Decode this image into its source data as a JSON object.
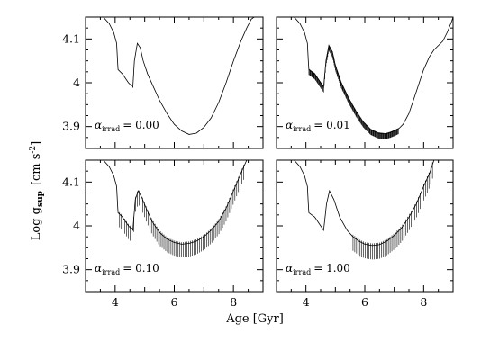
{
  "chart_data": {
    "type": "line",
    "xlabel": "Age [Gyr]",
    "ylabel": "Log g",
    "ylabel_sub": "sup",
    "ylabel_unit_prefix": "[cm s",
    "ylabel_unit_exp": "-2",
    "ylabel_unit_suffix": "]",
    "xlim": [
      3,
      9
    ],
    "ylim": [
      3.85,
      4.15
    ],
    "xticks": [
      4,
      6,
      8
    ],
    "xtick_labels": [
      "4",
      "6",
      "8"
    ],
    "yticks": [
      3.9,
      4.0,
      4.1
    ],
    "ytick_labels": [
      "3.9",
      "4",
      "4.1"
    ],
    "panels": [
      {
        "alpha_symbol": "α",
        "alpha_sub": "irrad",
        "alpha_text": "= 0.00",
        "curve": [
          [
            3.6,
            4.15
          ],
          [
            3.8,
            4.135
          ],
          [
            3.95,
            4.115
          ],
          [
            4.05,
            4.09
          ],
          [
            4.08,
            4.05
          ],
          [
            4.1,
            4.03
          ],
          [
            4.25,
            4.02
          ],
          [
            4.45,
            4.0
          ],
          [
            4.6,
            3.99
          ],
          [
            4.65,
            4.05
          ],
          [
            4.75,
            4.09
          ],
          [
            4.85,
            4.08
          ],
          [
            4.95,
            4.05
          ],
          [
            5.1,
            4.02
          ],
          [
            5.3,
            3.99
          ],
          [
            5.5,
            3.96
          ],
          [
            5.75,
            3.93
          ],
          [
            6.0,
            3.905
          ],
          [
            6.25,
            3.89
          ],
          [
            6.5,
            3.882
          ],
          [
            6.75,
            3.885
          ],
          [
            7.0,
            3.898
          ],
          [
            7.25,
            3.92
          ],
          [
            7.5,
            3.955
          ],
          [
            7.75,
            4.0
          ],
          [
            8.0,
            4.05
          ],
          [
            8.25,
            4.095
          ],
          [
            8.45,
            4.125
          ],
          [
            8.6,
            4.145
          ],
          [
            8.7,
            4.15
          ]
        ],
        "oscillation": null
      },
      {
        "alpha_symbol": "α",
        "alpha_sub": "irrad",
        "alpha_text": "= 0.01",
        "curve": [
          [
            3.6,
            4.15
          ],
          [
            3.8,
            4.135
          ],
          [
            3.95,
            4.115
          ],
          [
            4.05,
            4.09
          ],
          [
            4.08,
            4.05
          ],
          [
            4.1,
            4.03
          ],
          [
            4.3,
            4.02
          ],
          [
            4.5,
            4.0
          ],
          [
            4.6,
            3.99
          ],
          [
            4.68,
            4.05
          ],
          [
            4.78,
            4.085
          ],
          [
            4.9,
            4.07
          ],
          [
            5.0,
            4.04
          ],
          [
            5.2,
            4.0
          ],
          [
            5.45,
            3.965
          ],
          [
            5.7,
            3.935
          ],
          [
            5.95,
            3.91
          ],
          [
            6.2,
            3.893
          ],
          [
            6.45,
            3.885
          ],
          [
            6.7,
            3.883
          ],
          [
            6.85,
            3.886
          ],
          [
            7.0,
            3.89
          ],
          [
            7.15,
            3.895
          ],
          [
            7.3,
            3.905
          ],
          [
            7.5,
            3.93
          ],
          [
            7.75,
            3.98
          ],
          [
            8.0,
            4.03
          ],
          [
            8.2,
            4.06
          ],
          [
            8.35,
            4.075
          ],
          [
            8.5,
            4.085
          ],
          [
            8.65,
            4.095
          ],
          [
            8.8,
            4.115
          ],
          [
            8.95,
            4.14
          ],
          [
            9.0,
            4.15
          ]
        ],
        "oscillation": {
          "x_start": 4.1,
          "x_end": 7.15,
          "amplitude": 0.012
        }
      },
      {
        "alpha_symbol": "α",
        "alpha_sub": "irrad",
        "alpha_text": "= 0.10",
        "curve": [
          [
            3.6,
            4.15
          ],
          [
            3.8,
            4.135
          ],
          [
            3.95,
            4.115
          ],
          [
            4.05,
            4.09
          ],
          [
            4.08,
            4.05
          ],
          [
            4.1,
            4.03
          ],
          [
            4.25,
            4.02
          ],
          [
            4.45,
            4.0
          ],
          [
            4.6,
            3.99
          ],
          [
            4.68,
            4.06
          ],
          [
            4.78,
            4.08
          ],
          [
            4.9,
            4.065
          ],
          [
            5.05,
            4.04
          ],
          [
            5.25,
            4.01
          ],
          [
            5.5,
            3.985
          ],
          [
            5.75,
            3.97
          ],
          [
            6.0,
            3.962
          ],
          [
            6.25,
            3.958
          ],
          [
            6.5,
            3.96
          ],
          [
            6.75,
            3.965
          ],
          [
            7.0,
            3.975
          ],
          [
            7.25,
            3.99
          ],
          [
            7.5,
            4.01
          ],
          [
            7.75,
            4.04
          ],
          [
            8.0,
            4.08
          ],
          [
            8.25,
            4.12
          ],
          [
            8.45,
            4.15
          ]
        ],
        "oscillation": {
          "x_start": 4.15,
          "x_end": 8.4,
          "amplitude": 0.03
        }
      },
      {
        "alpha_symbol": "α",
        "alpha_sub": "irrad",
        "alpha_text": "= 1.00",
        "curve": [
          [
            3.6,
            4.15
          ],
          [
            3.8,
            4.135
          ],
          [
            3.95,
            4.115
          ],
          [
            4.05,
            4.09
          ],
          [
            4.08,
            4.05
          ],
          [
            4.1,
            4.03
          ],
          [
            4.3,
            4.02
          ],
          [
            4.5,
            4.0
          ],
          [
            4.6,
            3.99
          ],
          [
            4.7,
            4.05
          ],
          [
            4.8,
            4.08
          ],
          [
            4.95,
            4.06
          ],
          [
            5.15,
            4.02
          ],
          [
            5.4,
            3.99
          ],
          [
            5.6,
            3.975
          ],
          [
            5.8,
            3.965
          ],
          [
            6.0,
            3.958
          ],
          [
            6.25,
            3.955
          ],
          [
            6.5,
            3.957
          ],
          [
            6.75,
            3.965
          ],
          [
            7.0,
            3.978
          ],
          [
            7.25,
            3.995
          ],
          [
            7.5,
            4.02
          ],
          [
            7.75,
            4.05
          ],
          [
            8.0,
            4.09
          ],
          [
            8.2,
            4.12
          ],
          [
            8.35,
            4.15
          ]
        ],
        "oscillation": {
          "x_start": 5.6,
          "x_end": 8.3,
          "amplitude": 0.032
        }
      }
    ]
  }
}
